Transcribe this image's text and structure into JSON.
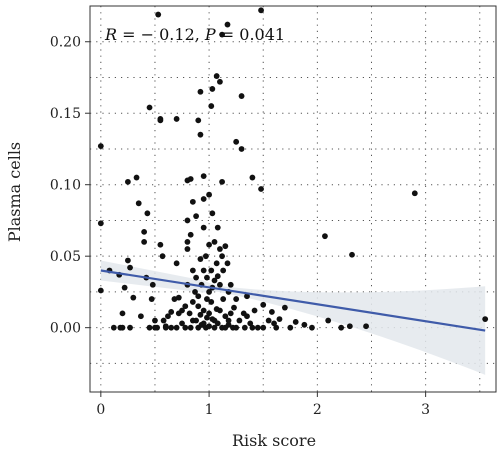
{
  "chart_data": {
    "type": "scatter",
    "xlabel": "Risk score",
    "ylabel": "Plasma cells",
    "xlim": [
      -0.1,
      3.65
    ],
    "ylim": [
      -0.045,
      0.225
    ],
    "x_ticks": [
      "0",
      "1",
      "2",
      "3"
    ],
    "x_tick_values": [
      0,
      1,
      2,
      3
    ],
    "y_ticks": [
      "0.00",
      "0.05",
      "0.10",
      "0.15",
      "0.20"
    ],
    "y_tick_values": [
      0.0,
      0.05,
      0.1,
      0.15,
      0.2
    ],
    "grid": "dotted",
    "annotation": {
      "r_label": "R",
      "r_text": " = − 0.12, ",
      "p_label": "P",
      "p_text": " = 0.041"
    },
    "regression": {
      "color": "#3f5ba9",
      "band_color": "#e3e7ec",
      "start": [
        0.0,
        0.04
      ],
      "end": [
        3.55,
        -0.002
      ],
      "band_upper_end": 0.027,
      "band_lower_end": -0.031
    },
    "point_color": "#111111",
    "points": [
      [
        0.0,
        0.127
      ],
      [
        0.0,
        0.073
      ],
      [
        0.0,
        0.026
      ],
      [
        0.08,
        0.04
      ],
      [
        0.12,
        0.0
      ],
      [
        0.17,
        0.037
      ],
      [
        0.18,
        0.0
      ],
      [
        0.2,
        0.01
      ],
      [
        0.2,
        0.0
      ],
      [
        0.22,
        0.028
      ],
      [
        0.25,
        0.102
      ],
      [
        0.25,
        0.047
      ],
      [
        0.27,
        0.0
      ],
      [
        0.27,
        0.042
      ],
      [
        0.3,
        0.021
      ],
      [
        0.33,
        0.105
      ],
      [
        0.35,
        0.087
      ],
      [
        0.37,
        0.008
      ],
      [
        0.4,
        0.06
      ],
      [
        0.4,
        0.067
      ],
      [
        0.42,
        0.035
      ],
      [
        0.43,
        0.08
      ],
      [
        0.45,
        0.154
      ],
      [
        0.45,
        0.0
      ],
      [
        0.47,
        0.02
      ],
      [
        0.48,
        0.03
      ],
      [
        0.5,
        0.005
      ],
      [
        0.52,
        0.0
      ],
      [
        0.53,
        0.219
      ],
      [
        0.55,
        0.146
      ],
      [
        0.55,
        0.145
      ],
      [
        0.55,
        0.058
      ],
      [
        0.57,
        0.05
      ],
      [
        0.58,
        0.005
      ],
      [
        0.6,
        0.001
      ],
      [
        0.62,
        0.008
      ],
      [
        0.65,
        0.0
      ],
      [
        0.68,
        0.02
      ],
      [
        0.7,
        0.146
      ],
      [
        0.7,
        0.045
      ],
      [
        0.72,
        0.01
      ],
      [
        0.75,
        0.003
      ],
      [
        0.78,
        0.0
      ],
      [
        0.8,
        0.103
      ],
      [
        0.8,
        0.075
      ],
      [
        0.8,
        0.06
      ],
      [
        0.8,
        0.03
      ],
      [
        0.8,
        0.055
      ],
      [
        0.82,
        0.01
      ],
      [
        0.83,
        0.104
      ],
      [
        0.83,
        0.065
      ],
      [
        0.83,
        0.0
      ],
      [
        0.85,
        0.04
      ],
      [
        0.85,
        0.088
      ],
      [
        0.85,
        0.005
      ],
      [
        0.87,
        0.025
      ],
      [
        0.88,
        0.078
      ],
      [
        0.88,
        0.005
      ],
      [
        0.9,
        0.145
      ],
      [
        0.9,
        0.015
      ],
      [
        0.9,
        0.0
      ],
      [
        0.92,
        0.165
      ],
      [
        0.92,
        0.135
      ],
      [
        0.92,
        0.048
      ],
      [
        0.93,
        0.03
      ],
      [
        0.93,
        0.002
      ],
      [
        0.95,
        0.106
      ],
      [
        0.95,
        0.09
      ],
      [
        0.95,
        0.07
      ],
      [
        0.95,
        0.012
      ],
      [
        0.95,
        0.003
      ],
      [
        0.97,
        0.05
      ],
      [
        0.97,
        0.0
      ],
      [
        0.98,
        0.035
      ],
      [
        0.98,
        0.02
      ],
      [
        1.0,
        0.058
      ],
      [
        1.0,
        0.093
      ],
      [
        1.0,
        0.01
      ],
      [
        1.0,
        0.001
      ],
      [
        1.02,
        0.155
      ],
      [
        1.02,
        0.04
      ],
      [
        1.02,
        0.018
      ],
      [
        1.03,
        0.167
      ],
      [
        1.03,
        0.08
      ],
      [
        1.03,
        0.028
      ],
      [
        1.03,
        0.006
      ],
      [
        1.05,
        0.06
      ],
      [
        1.05,
        0.005
      ],
      [
        1.05,
        0.0
      ],
      [
        1.07,
        0.176
      ],
      [
        1.07,
        0.045
      ],
      [
        1.07,
        0.013
      ],
      [
        1.08,
        0.07
      ],
      [
        1.08,
        0.003
      ],
      [
        1.1,
        0.172
      ],
      [
        1.1,
        0.055
      ],
      [
        1.1,
        0.03
      ],
      [
        1.1,
        0.012
      ],
      [
        1.12,
        0.205
      ],
      [
        1.12,
        0.102
      ],
      [
        1.12,
        0.0
      ],
      [
        1.13,
        0.04
      ],
      [
        1.13,
        0.02
      ],
      [
        1.15,
        0.057
      ],
      [
        1.15,
        0.008
      ],
      [
        1.17,
        0.212
      ],
      [
        1.17,
        0.045
      ],
      [
        1.18,
        0.025
      ],
      [
        1.18,
        0.002
      ],
      [
        1.2,
        0.03
      ],
      [
        1.2,
        0.01
      ],
      [
        1.22,
        0.0
      ],
      [
        1.23,
        0.014
      ],
      [
        1.25,
        0.13
      ],
      [
        1.25,
        0.02
      ],
      [
        1.28,
        0.005
      ],
      [
        1.3,
        0.125
      ],
      [
        1.3,
        0.162
      ],
      [
        1.32,
        0.01
      ],
      [
        1.33,
        0.0
      ],
      [
        1.35,
        0.022
      ],
      [
        1.38,
        0.003
      ],
      [
        1.4,
        0.105
      ],
      [
        1.42,
        0.012
      ],
      [
        1.45,
        0.0
      ],
      [
        1.48,
        0.097
      ],
      [
        1.48,
        0.222
      ],
      [
        1.5,
        0.016
      ],
      [
        1.55,
        0.005
      ],
      [
        1.58,
        0.011
      ],
      [
        1.62,
        0.0
      ],
      [
        1.65,
        0.006
      ],
      [
        1.7,
        0.014
      ],
      [
        1.75,
        0.0
      ],
      [
        1.8,
        0.004
      ],
      [
        1.88,
        0.002
      ],
      [
        1.95,
        0.0
      ],
      [
        2.07,
        0.064
      ],
      [
        2.1,
        0.005
      ],
      [
        2.22,
        0.0
      ],
      [
        2.3,
        0.001
      ],
      [
        2.32,
        0.051
      ],
      [
        2.45,
        0.001
      ],
      [
        2.9,
        0.094
      ],
      [
        3.55,
        0.006
      ],
      [
        0.5,
        0.0
      ],
      [
        0.6,
        0.0
      ],
      [
        0.7,
        0.0
      ],
      [
        0.75,
        0.012
      ],
      [
        0.85,
        0.018
      ],
      [
        0.9,
        0.022
      ],
      [
        1.0,
        0.025
      ],
      [
        1.15,
        0.0
      ],
      [
        1.25,
        0.0
      ],
      [
        1.35,
        0.008
      ],
      [
        0.95,
        0.04
      ],
      [
        1.08,
        0.036
      ],
      [
        0.88,
        0.035
      ],
      [
        1.12,
        0.05
      ],
      [
        0.78,
        0.015
      ],
      [
        1.4,
        0.0
      ],
      [
        1.5,
        0.0
      ],
      [
        1.6,
        0.003
      ],
      [
        0.65,
        0.011
      ],
      [
        0.72,
        0.021
      ],
      [
        0.98,
        0.007
      ],
      [
        1.18,
        0.005
      ],
      [
        1.05,
        0.033
      ],
      [
        0.92,
        0.009
      ]
    ]
  }
}
